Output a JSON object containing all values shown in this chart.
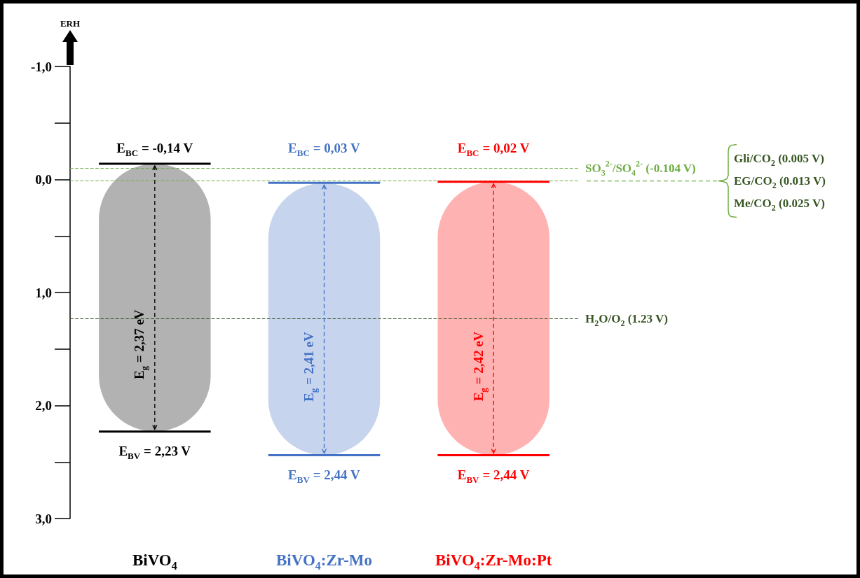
{
  "chart_data": {
    "type": "bar",
    "ylabel": "ERH",
    "categories": [
      "BiVO$_{4}$",
      "BiVO$_{4}$:Zr-Mo",
      "BiVO$_{4}$:Zr-Mo:Pt"
    ],
    "base": [
      -0.14,
      0.03,
      0.02
    ],
    "values": [
      2.37,
      2.41,
      2.42
    ],
    "colors": [
      "#000000",
      "#4472c4",
      "#ff0000"
    ],
    "value_labels": [
      "E$_{g}$ = 2,37 eV",
      "E$_{g}$ = 2,41 eV",
      "E$_{g}$ = 2,42 eV"
    ],
    "ylim": [
      3,
      -1
    ],
    "yticks": [
      {
        "value": -1,
        "label": "-1,0"
      },
      {
        "value": 0,
        "label": "0,0"
      },
      {
        "value": 1,
        "label": "1,0"
      },
      {
        "value": 2,
        "label": "2,0"
      },
      {
        "value": 3,
        "label": "3,0"
      }
    ],
    "grid": false,
    "ref_lines": [
      {
        "axis": "y",
        "value": -0.104,
        "label": "SO$_{3}$$^{2-}$/SO$_{4}$$^{2-}$ (-0.104 V)",
        "color": "#70ad47",
        "line_style": "dashed"
      },
      {
        "axis": "y",
        "value": 0.013,
        "label": null,
        "color": "#70ad47",
        "line_style": "dashed"
      },
      {
        "axis": "y",
        "value": 1.23,
        "label": "H$_{2}$O/O$_{2}$ (1.23 V)",
        "color": "#375623",
        "line_style": "dashed"
      }
    ],
    "annotations": [
      {
        "text": "E$_{BC}$ = -0,14 V",
        "x": "BiVO$_{4}$",
        "y": -0.14
      },
      {
        "text": "E$_{BC}$ = 0,03 V",
        "x": "BiVO$_{4}$:Zr-Mo",
        "y": 0.03
      },
      {
        "text": "E$_{BC}$ = 0,02 V",
        "x": "BiVO$_{4}$:Zr-Mo:Pt",
        "y": 0.02
      },
      {
        "text": "E$_{BV}$ = 2,23 V",
        "x": "BiVO$_{4}$",
        "y": 2.23
      },
      {
        "text": "E$_{BV}$ = 2,44 V",
        "x": "BiVO$_{4}$:Zr-Mo",
        "y": 2.44
      },
      {
        "text": "E$_{BV}$ = 2,44 V",
        "x": "BiVO$_{4}$:Zr-Mo:Pt",
        "y": 2.44
      },
      "Gli/CO$_{2}$ (0.005 V)",
      "EG/CO$_{2}$ (0.013 V)",
      "Me/CO$_{2}$ (0.025 V)"
    ]
  }
}
